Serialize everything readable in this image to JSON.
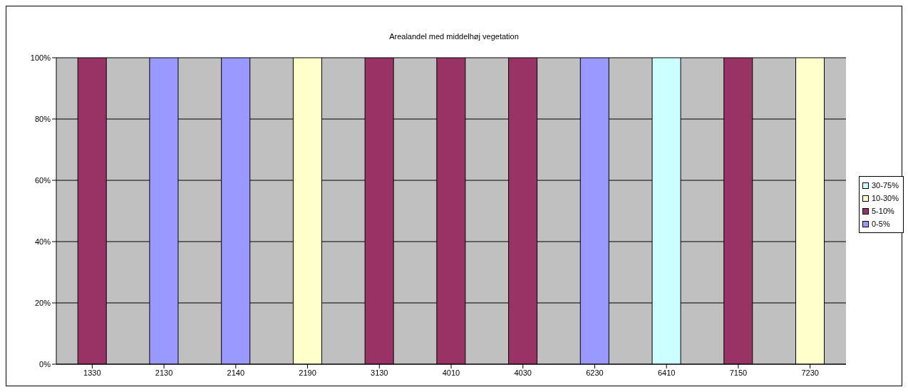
{
  "chart_data": {
    "type": "bar",
    "title": "Arealandel med middelhøj vegetation",
    "stacked": true,
    "categories": [
      "1330",
      "2130",
      "2140",
      "2190",
      "3130",
      "4010",
      "4030",
      "6230",
      "6410",
      "7150",
      "7230"
    ],
    "series": [
      {
        "name": "0-5%",
        "color": "#9999ff",
        "values": [
          null,
          100,
          100,
          null,
          null,
          null,
          null,
          100,
          null,
          null,
          null
        ]
      },
      {
        "name": "5-10%",
        "color": "#993366",
        "values": [
          100,
          null,
          null,
          null,
          100,
          100,
          100,
          null,
          null,
          100,
          null
        ]
      },
      {
        "name": "10-30%",
        "color": "#ffffcc",
        "values": [
          null,
          null,
          null,
          100,
          null,
          null,
          null,
          null,
          null,
          null,
          100
        ]
      },
      {
        "name": "30-75%",
        "color": "#ccffff",
        "values": [
          null,
          null,
          null,
          null,
          null,
          null,
          null,
          null,
          100,
          null,
          null
        ]
      }
    ],
    "ylim": [
      0,
      100
    ],
    "yticks": [
      {
        "value": 0,
        "label": "0%"
      },
      {
        "value": 20,
        "label": "20%"
      },
      {
        "value": 40,
        "label": "40%"
      },
      {
        "value": 60,
        "label": "60%"
      },
      {
        "value": 80,
        "label": "80%"
      },
      {
        "value": 100,
        "label": "100%"
      }
    ],
    "grid": "y",
    "legend": "right"
  }
}
